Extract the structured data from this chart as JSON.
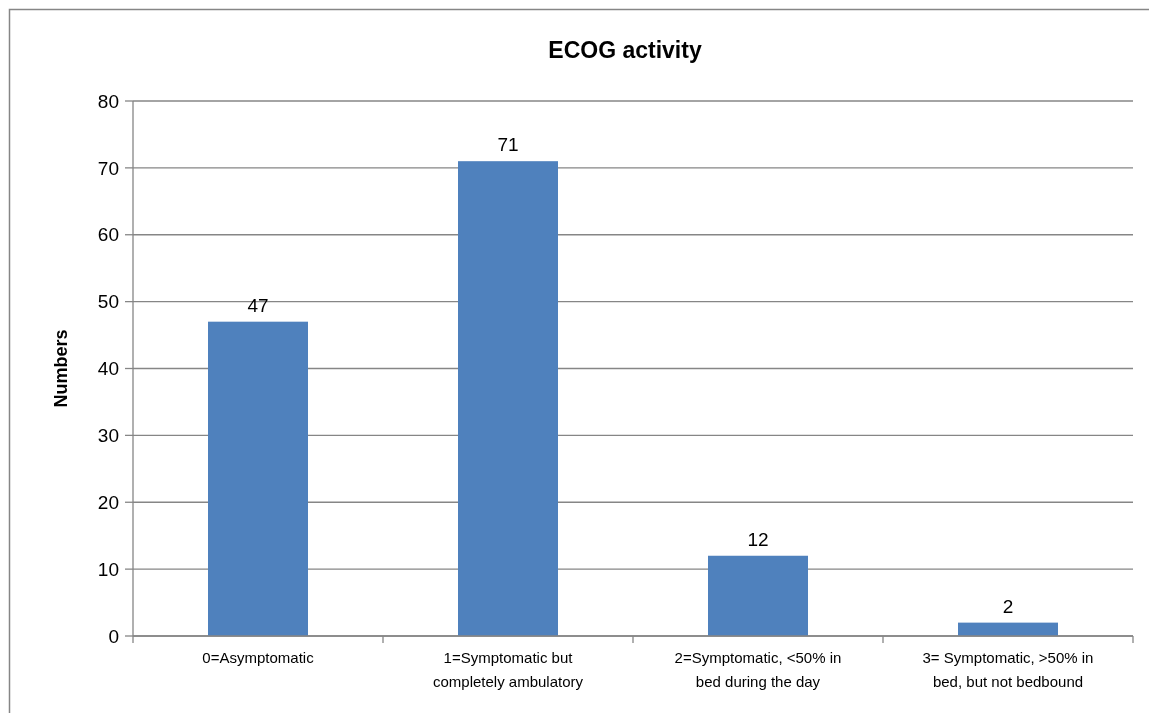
{
  "chart_data": {
    "type": "bar",
    "title": "ECOG activity",
    "ylabel": "Numbers",
    "categories": [
      "0=Asymptomatic",
      "1=Symptomatic but completely ambulatory",
      "2=Symptomatic, <50% in bed during the day",
      "3= Symptomatic, >50% in bed, but not bedbound"
    ],
    "values": [
      47,
      71,
      12,
      2
    ],
    "color": "#4f81bd",
    "ylim": [
      0,
      80
    ],
    "yticks": [
      0,
      10,
      20,
      30,
      40,
      50,
      60,
      70,
      80
    ],
    "grid": "y",
    "data_labels": true
  }
}
